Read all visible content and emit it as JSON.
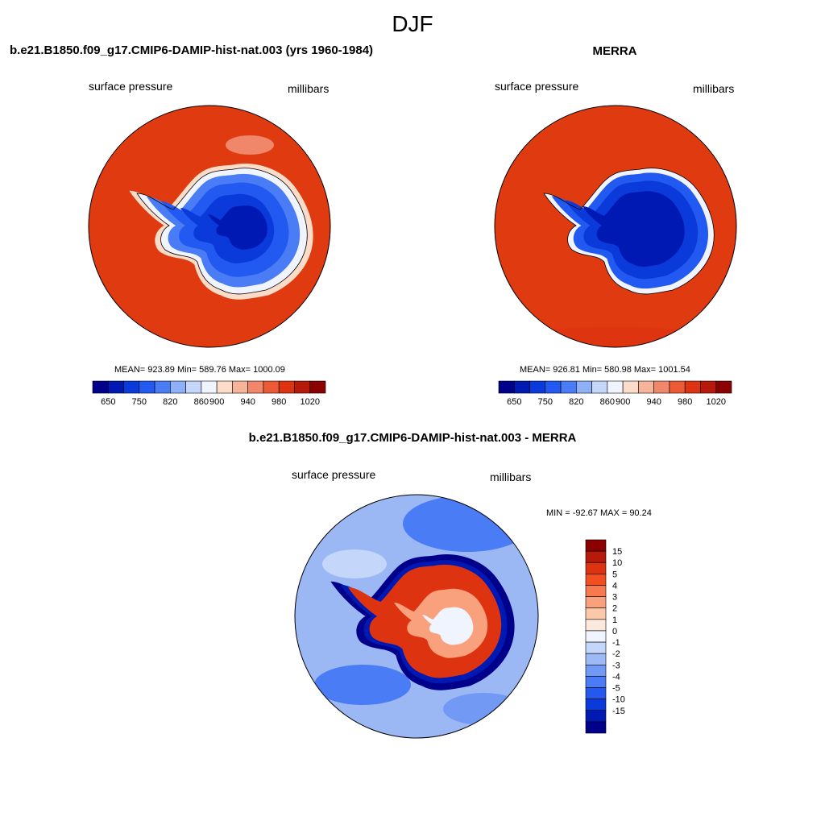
{
  "figure": {
    "title": "DJF"
  },
  "panels": [
    {
      "title": "b.e21.B1850.f09_g17.CMIP6-DAMIP-hist-nat.003 (yrs 1960-1984)",
      "left_label": "surface pressure",
      "right_label": "millibars",
      "stats": "MEAN= 923.89  Min= 589.76  Max= 1000.09",
      "colorbar_ticks": [
        "650",
        "750",
        "820",
        "860",
        "900",
        "940",
        "980",
        "1020"
      ]
    },
    {
      "title": "MERRA",
      "left_label": "surface pressure",
      "right_label": "millibars",
      "stats": "MEAN= 926.81  Min= 580.98  Max= 1001.54",
      "colorbar_ticks": [
        "650",
        "750",
        "820",
        "860",
        "900",
        "940",
        "980",
        "1020"
      ]
    },
    {
      "title": "b.e21.B1850.f09_g17.CMIP6-DAMIP-hist-nat.003 - MERRA",
      "left_label": "surface pressure",
      "right_label": "millibars",
      "stats": "MIN = -92.67 MAX =  90.24",
      "colorbar_ticks": [
        "15",
        "10",
        "5",
        "4",
        "3",
        "2",
        "1",
        "0",
        "-1",
        "-2",
        "-3",
        "-4",
        "-5",
        "-10",
        "-15"
      ]
    }
  ],
  "colors": {
    "abs_scale": [
      "#00008b",
      "#0019b3",
      "#0a3ad9",
      "#2259f0",
      "#4a7cf5",
      "#8db0f7",
      "#c4d6fa",
      "#f0f4ff",
      "#fbdcc8",
      "#f6b49b",
      "#f0876a",
      "#eb5a34",
      "#dd3311",
      "#b51a0a",
      "#8b0000"
    ],
    "diff_scale": [
      "#8b0000",
      "#b51a0a",
      "#dd3311",
      "#f34f1e",
      "#f7794e",
      "#f9a07c",
      "#fbc8aa",
      "#fde8dc",
      "#f0f4ff",
      "#c4d6fa",
      "#9dbaf7",
      "#7299f4",
      "#4a7cf5",
      "#2559ee",
      "#0a3ad9",
      "#0019b3",
      "#00008b"
    ],
    "ocean": "#e03a10",
    "ocean_diff": "#9cb8f4"
  }
}
